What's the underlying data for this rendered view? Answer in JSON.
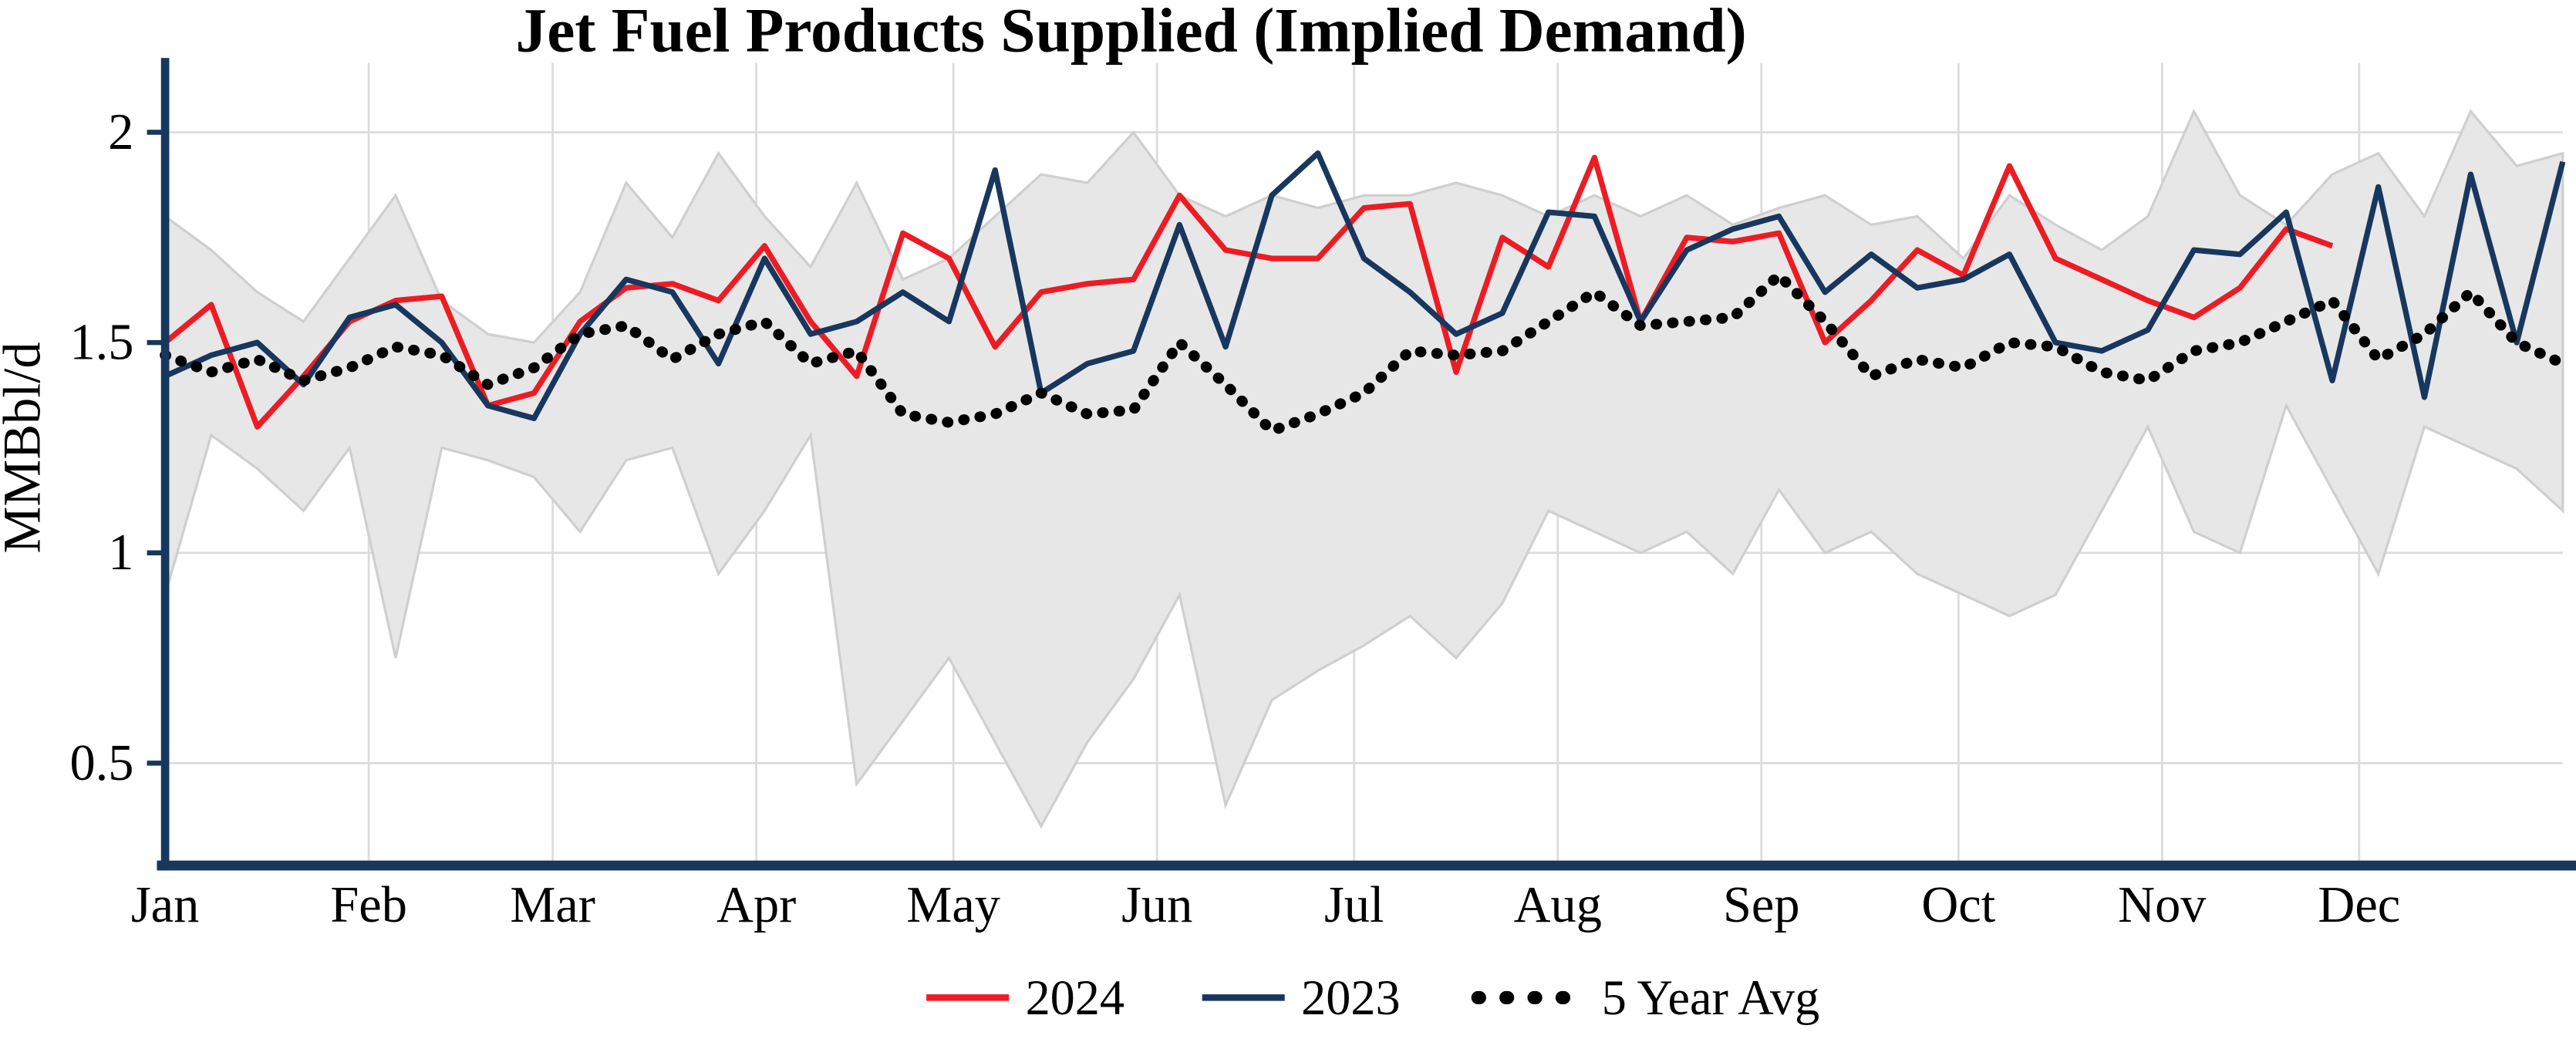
{
  "chart_data": {
    "type": "line",
    "title": "Jet Fuel Products Supplied (Implied Demand)",
    "ylabel": "MMBbl/d",
    "xlabel": "",
    "x_frequency": "weekly",
    "months": [
      "Jan",
      "Feb",
      "Mar",
      "Apr",
      "May",
      "Jun",
      "Jul",
      "Aug",
      "Sep",
      "Oct",
      "Nov",
      "Dec"
    ],
    "yticks": [
      0.5,
      1,
      1.5,
      2
    ],
    "ylim": [
      0.25,
      2.17
    ],
    "xlim_weeks": [
      0,
      52
    ],
    "grid": true,
    "legend_position": "bottom-center",
    "colors": {
      "axis": "#17375e",
      "grid": "#dcdcdc",
      "band_fill": "#e7e7e7",
      "band_edge": "#cfcfcf"
    },
    "band": {
      "name": "5-year range",
      "upper": [
        1.8,
        1.72,
        1.62,
        1.55,
        1.7,
        1.85,
        1.6,
        1.52,
        1.5,
        1.62,
        1.88,
        1.75,
        1.95,
        1.8,
        1.68,
        1.88,
        1.65,
        1.7,
        1.8,
        1.9,
        1.88,
        2.0,
        1.85,
        1.8,
        1.85,
        1.82,
        1.85,
        1.85,
        1.88,
        1.85,
        1.8,
        1.85,
        1.8,
        1.85,
        1.78,
        1.82,
        1.85,
        1.78,
        1.8,
        1.7,
        1.85,
        1.78,
        1.72,
        1.8,
        2.05,
        1.85,
        1.78,
        1.9,
        1.95,
        1.8,
        2.05,
        1.92,
        1.95
      ],
      "lower": [
        0.9,
        1.28,
        1.2,
        1.1,
        1.25,
        0.75,
        1.25,
        1.22,
        1.18,
        1.05,
        1.22,
        1.25,
        0.95,
        1.1,
        1.28,
        0.45,
        0.6,
        0.75,
        0.55,
        0.35,
        0.55,
        0.7,
        0.9,
        0.4,
        0.65,
        0.72,
        0.78,
        0.85,
        0.75,
        0.88,
        1.1,
        1.05,
        1.0,
        1.05,
        0.95,
        1.15,
        1.0,
        1.05,
        0.95,
        0.9,
        0.85,
        0.9,
        1.1,
        1.3,
        1.05,
        1.0,
        1.35,
        1.15,
        0.95,
        1.3,
        1.25,
        1.2,
        1.1
      ]
    },
    "series": [
      {
        "name": "2024",
        "color": "#ed1c24",
        "style": "solid",
        "values": [
          1.5,
          1.59,
          1.3,
          1.42,
          1.55,
          1.6,
          1.61,
          1.35,
          1.38,
          1.55,
          1.63,
          1.64,
          1.6,
          1.73,
          1.55,
          1.42,
          1.76,
          1.7,
          1.49,
          1.62,
          1.64,
          1.65,
          1.85,
          1.72,
          1.7,
          1.7,
          1.82,
          1.83,
          1.43,
          1.75,
          1.68,
          1.94,
          1.55,
          1.75,
          1.74,
          1.76,
          1.5,
          1.6,
          1.72,
          1.66,
          1.92,
          1.7,
          1.65,
          1.6,
          1.56,
          1.63,
          1.77,
          1.73
        ]
      },
      {
        "name": "2023",
        "color": "#17375e",
        "style": "solid",
        "values": [
          1.42,
          1.47,
          1.5,
          1.4,
          1.56,
          1.59,
          1.5,
          1.35,
          1.32,
          1.52,
          1.65,
          1.62,
          1.45,
          1.7,
          1.52,
          1.55,
          1.62,
          1.55,
          1.91,
          1.38,
          1.45,
          1.48,
          1.78,
          1.49,
          1.85,
          1.95,
          1.7,
          1.62,
          1.52,
          1.57,
          1.81,
          1.8,
          1.55,
          1.72,
          1.77,
          1.8,
          1.62,
          1.71,
          1.63,
          1.65,
          1.71,
          1.5,
          1.48,
          1.53,
          1.72,
          1.71,
          1.81,
          1.41,
          1.87,
          1.37,
          1.9,
          1.5,
          1.93
        ]
      },
      {
        "name": "5 Year Avg",
        "color": "#000000",
        "style": "dotted",
        "values": [
          1.47,
          1.43,
          1.46,
          1.41,
          1.44,
          1.49,
          1.47,
          1.4,
          1.44,
          1.52,
          1.54,
          1.46,
          1.52,
          1.55,
          1.45,
          1.48,
          1.33,
          1.31,
          1.33,
          1.38,
          1.33,
          1.34,
          1.5,
          1.4,
          1.29,
          1.33,
          1.38,
          1.48,
          1.47,
          1.48,
          1.55,
          1.62,
          1.54,
          1.55,
          1.56,
          1.66,
          1.55,
          1.42,
          1.46,
          1.44,
          1.5,
          1.49,
          1.43,
          1.41,
          1.48,
          1.5,
          1.55,
          1.6,
          1.46,
          1.52,
          1.62,
          1.5,
          1.45
        ]
      }
    ]
  }
}
